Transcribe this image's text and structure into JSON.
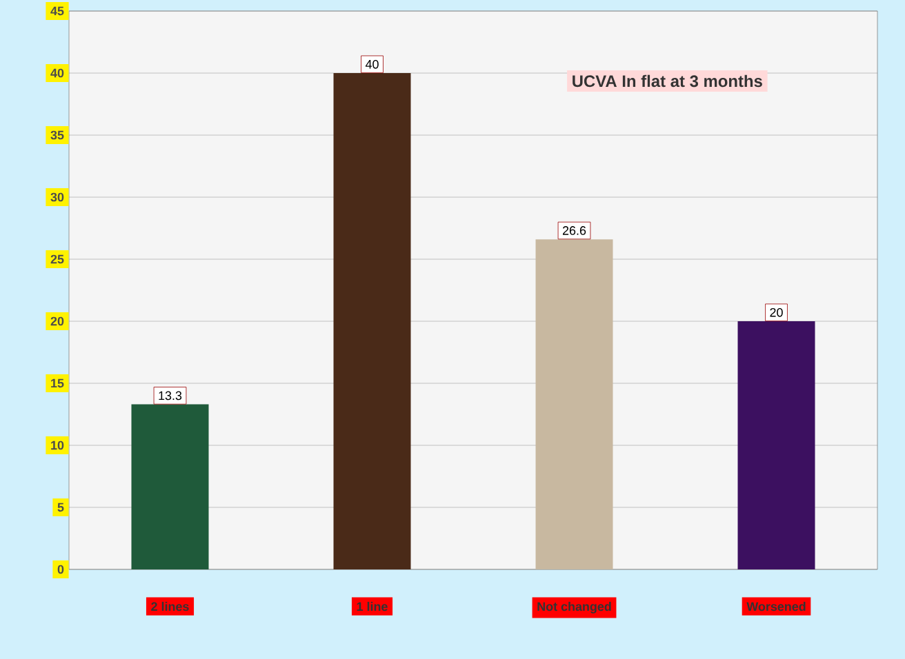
{
  "chart_data": {
    "type": "bar",
    "title": "UCVA In flat at 3 months",
    "categories": [
      "2 lines",
      "1 line",
      "Not changed",
      "Worsened"
    ],
    "values": [
      13.3,
      40,
      26.6,
      20
    ],
    "colors": [
      "#1f5a3a",
      "#4a2a18",
      "#c8b8a0",
      "#3c1060"
    ],
    "data_labels": true,
    "grid": "y",
    "ylim": [
      0,
      45
    ],
    "yticks": [
      0,
      5,
      10,
      15,
      20,
      25,
      30,
      35,
      40,
      45
    ]
  }
}
